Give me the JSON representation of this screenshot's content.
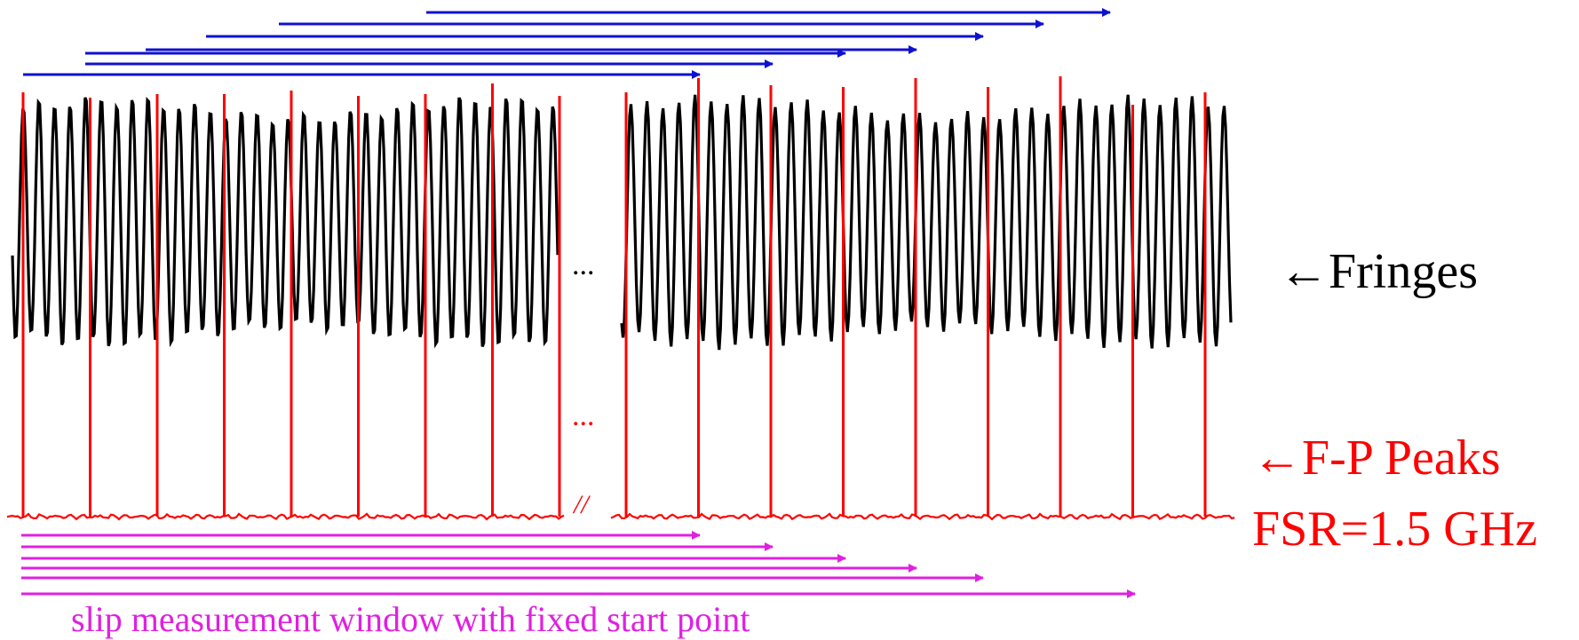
{
  "labels": {
    "fringes": "←Fringes",
    "peaks": "←F-P Peaks",
    "fsr": "FSR=1.5 GHz",
    "slip_window": "slip measurement window with fixed start point",
    "ellipsis": "...",
    "break_mark": "//"
  },
  "colors": {
    "fringe": "#000000",
    "peak": "#ff0000",
    "top_arrows": "#1010d0",
    "bottom_arrows": "#e020e0"
  },
  "diagram": {
    "fringe_count_left": 35,
    "fringe_count_right": 38,
    "fp_peak_count": 18,
    "top_arrow_count": 7,
    "bottom_arrow_count": 6
  }
}
